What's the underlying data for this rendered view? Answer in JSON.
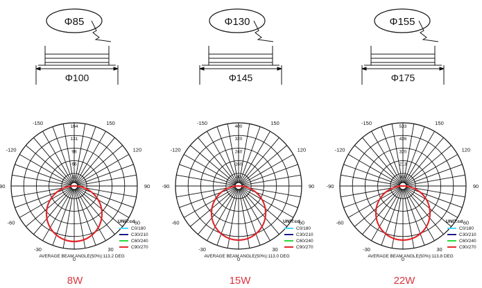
{
  "panels": [
    {
      "cutout_label": "Φ85",
      "outer_label": "Φ100",
      "tick_values": [
        "164",
        "131",
        "98",
        "66",
        "33"
      ],
      "angle_labels": [
        "-150",
        "-120",
        "-90",
        "-60",
        "-30",
        "0",
        "30",
        "60",
        "90",
        "120",
        "150"
      ],
      "beam_angle_text": "AVERAGE BEAM ANGLE(50%):113.2 DEG",
      "power": "8W"
    },
    {
      "cutout_label": "Φ130",
      "outer_label": "Φ145",
      "tick_values": [
        "400",
        "320",
        "240",
        "160",
        "80"
      ],
      "angle_labels": [
        "-150",
        "-120",
        "-90",
        "-60",
        "-30",
        "0",
        "30",
        "60",
        "90",
        "120",
        "150"
      ],
      "beam_angle_text": "AVERAGE BEAM ANGLE(50%):113.0 DEG",
      "power": "15W"
    },
    {
      "cutout_label": "Φ155",
      "outer_label": "Φ175",
      "tick_values": [
        "533",
        "426",
        "320",
        "213",
        "107"
      ],
      "angle_labels": [
        "-150",
        "-120",
        "-90",
        "-60",
        "-30",
        "0",
        "30",
        "60",
        "90",
        "120",
        "150"
      ],
      "beam_angle_text": "AVERAGE BEAM ANGLE(50%):113.8 DEG",
      "power": "22W"
    }
  ],
  "legend": {
    "unit_label": "UNIT:cd",
    "items": [
      {
        "label": "C0/180",
        "color": "#44d8ff"
      },
      {
        "label": "C30/210",
        "color": "#1c1c8c"
      },
      {
        "label": "C60/240",
        "color": "#2bd93a"
      },
      {
        "label": "C90/270",
        "color": "#e0262b"
      }
    ]
  },
  "colors": {
    "line": "#111111",
    "curve": "#e0262b",
    "power_text": "#d9363e"
  }
}
